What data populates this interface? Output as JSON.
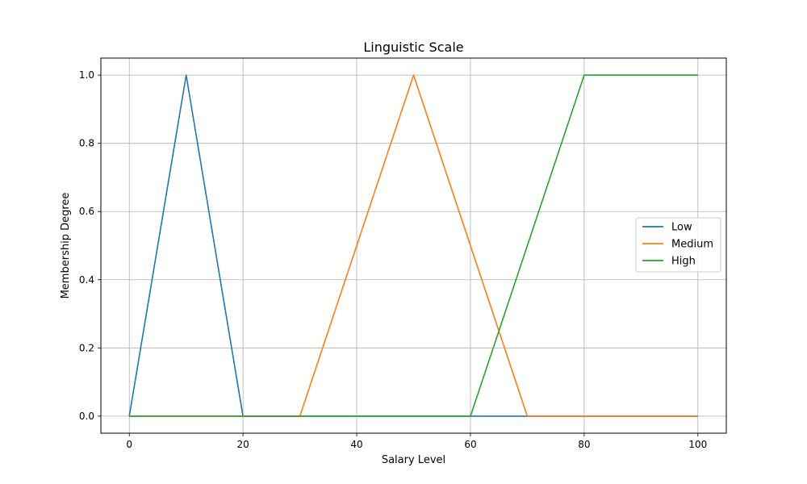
{
  "chart_data": {
    "type": "line",
    "title": "Linguistic Scale",
    "xlabel": "Salary Level",
    "ylabel": "Membership Degree",
    "xlim": [
      -5,
      105
    ],
    "ylim": [
      -0.05,
      1.05
    ],
    "xticks": [
      0,
      20,
      40,
      60,
      80,
      100
    ],
    "yticks": [
      0.0,
      0.2,
      0.4,
      0.6,
      0.8,
      1.0
    ],
    "xtick_labels": [
      "0",
      "20",
      "40",
      "60",
      "80",
      "100"
    ],
    "ytick_labels": [
      "0.0",
      "0.2",
      "0.4",
      "0.6",
      "0.8",
      "1.0"
    ],
    "grid": true,
    "legend_position": "center-right",
    "series": [
      {
        "name": "Low",
        "color": "#1f77b4",
        "x": [
          0,
          10,
          20,
          100
        ],
        "y": [
          0,
          1,
          0,
          0
        ]
      },
      {
        "name": "Medium",
        "color": "#ff7f0e",
        "x": [
          0,
          30,
          50,
          70,
          100
        ],
        "y": [
          0,
          0,
          1,
          0,
          0
        ]
      },
      {
        "name": "High",
        "color": "#2ca02c",
        "x": [
          0,
          60,
          80,
          100
        ],
        "y": [
          0,
          0,
          1,
          1
        ]
      }
    ]
  }
}
